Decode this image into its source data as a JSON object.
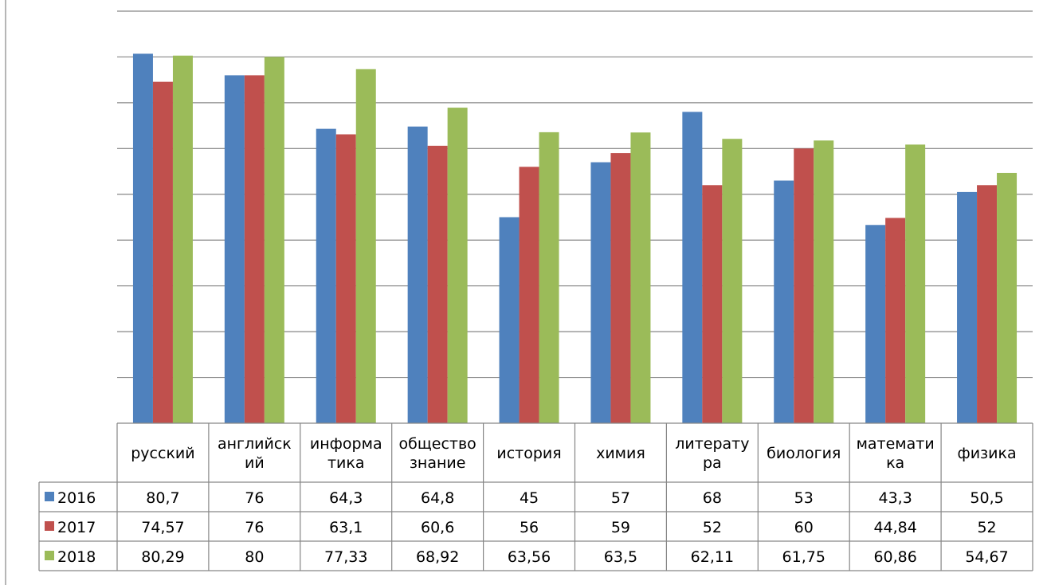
{
  "chart_data": {
    "type": "bar",
    "title": "",
    "xlabel": "",
    "ylabel": "",
    "ylim": [
      0,
      90
    ],
    "grid": true,
    "legend": "data-table-left",
    "categories": [
      [
        "русский"
      ],
      [
        "английск",
        "ий"
      ],
      [
        "информа",
        "тика"
      ],
      [
        "общество",
        "знание"
      ],
      [
        "история"
      ],
      [
        "химия"
      ],
      [
        "литерату",
        "ра"
      ],
      [
        "биология"
      ],
      [
        "математи",
        "ка"
      ],
      [
        "физика"
      ]
    ],
    "series": [
      {
        "name": "2016",
        "color": "#4f81bd",
        "values": [
          80.7,
          76,
          64.3,
          64.8,
          45,
          57,
          68,
          53,
          43.3,
          50.5
        ],
        "labels": [
          "80,7",
          "76",
          "64,3",
          "64,8",
          "45",
          "57",
          "68",
          "53",
          "43,3",
          "50,5"
        ]
      },
      {
        "name": "2017",
        "color": "#c0504d",
        "values": [
          74.57,
          76,
          63.1,
          60.6,
          56,
          59,
          52,
          60,
          44.84,
          52
        ],
        "labels": [
          "74,57",
          "76",
          "63,1",
          "60,6",
          "56",
          "59",
          "52",
          "60",
          "44,84",
          "52"
        ]
      },
      {
        "name": "2018",
        "color": "#9bbb59",
        "values": [
          80.29,
          80,
          77.33,
          68.92,
          63.56,
          63.5,
          62.11,
          61.75,
          60.86,
          54.67
        ],
        "labels": [
          "80,29",
          "80",
          "77,33",
          "68,92",
          "63,56",
          "63,5",
          "62,11",
          "61,75",
          "60,86",
          "54,67"
        ]
      }
    ]
  }
}
